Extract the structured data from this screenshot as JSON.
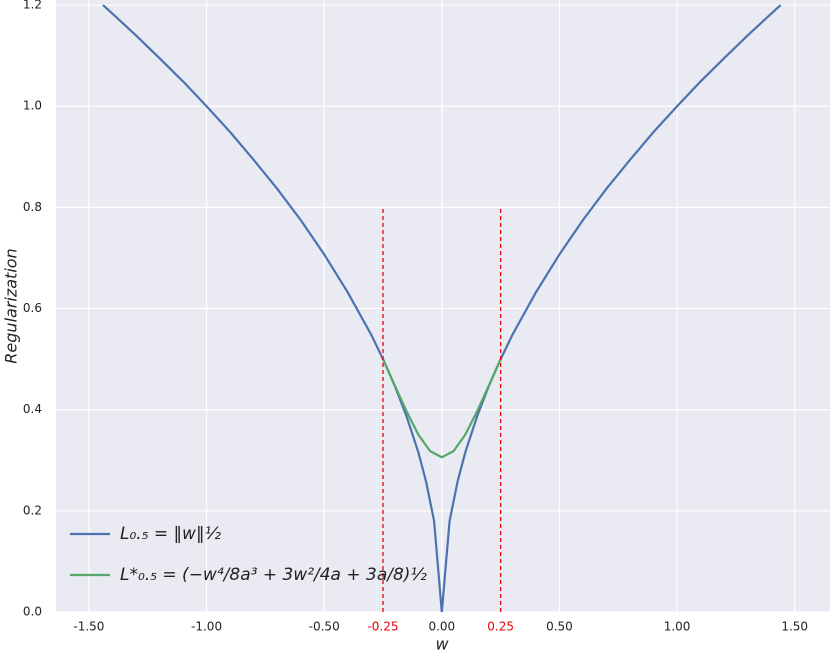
{
  "chart_data": {
    "type": "line",
    "xlabel": "w",
    "ylabel": "Regularization",
    "xlim": [
      -1.64,
      1.65
    ],
    "ylim": [
      0,
      1.21
    ],
    "xticks": [
      {
        "value": -1.5,
        "label": "-1.50"
      },
      {
        "value": -1,
        "label": "-1.00"
      },
      {
        "value": -0.5,
        "label": "-0.50"
      },
      {
        "value": 0,
        "label": "0.00"
      },
      {
        "value": 0.5,
        "label": "0.50"
      },
      {
        "value": 1,
        "label": "1.00"
      },
      {
        "value": 1.5,
        "label": "1.50"
      }
    ],
    "yticks": [
      {
        "value": 0,
        "label": "0.0"
      },
      0.2,
      0.4,
      0.6,
      0.8,
      {
        "value": 1,
        "label": "1.0"
      },
      1.2
    ],
    "grid": true,
    "legend": "lower left",
    "vlines": [
      {
        "x": -0.25,
        "label": "-0.25",
        "ymax": 0.8
      },
      {
        "x": 0.25,
        "label": "0.25",
        "ymax": 0.8
      }
    ],
    "vline_color": "#e8000b",
    "series": [
      {
        "name": "L₀.₅ = ‖w‖½",
        "color": "#4c72b0",
        "x": [
          -1.44,
          -1.4,
          -1.3,
          -1.2,
          -1.1,
          -1.0,
          -0.9,
          -0.8,
          -0.7,
          -0.6,
          -0.5,
          -0.4,
          -0.3,
          -0.25,
          -0.2,
          -0.15,
          -0.1,
          -0.067,
          -0.033,
          0,
          0.033,
          0.067,
          0.1,
          0.15,
          0.2,
          0.25,
          0.3,
          0.4,
          0.5,
          0.6,
          0.7,
          0.8,
          0.9,
          1.0,
          1.1,
          1.2,
          1.3,
          1.4,
          1.44
        ],
        "values": [
          1.2,
          1.183,
          1.14,
          1.095,
          1.049,
          1.0,
          0.949,
          0.894,
          0.837,
          0.775,
          0.707,
          0.632,
          0.548,
          0.5,
          0.447,
          0.387,
          0.316,
          0.258,
          0.18,
          0,
          0.18,
          0.258,
          0.316,
          0.387,
          0.447,
          0.5,
          0.548,
          0.632,
          0.707,
          0.775,
          0.837,
          0.894,
          0.949,
          1.0,
          1.049,
          1.095,
          1.14,
          1.183,
          1.2
        ]
      },
      {
        "name": "L*₀.₅ = (−w⁴/8a³ + 3w²/4a + 3a/8)½",
        "color": "#55a868",
        "x": [
          -0.25,
          -0.2,
          -0.15,
          -0.1,
          -0.05,
          0,
          0.05,
          0.1,
          0.15,
          0.2,
          0.25
        ],
        "values": [
          0.5,
          0.448,
          0.397,
          0.351,
          0.318,
          0.306,
          0.318,
          0.351,
          0.397,
          0.448,
          0.5
        ]
      }
    ]
  }
}
